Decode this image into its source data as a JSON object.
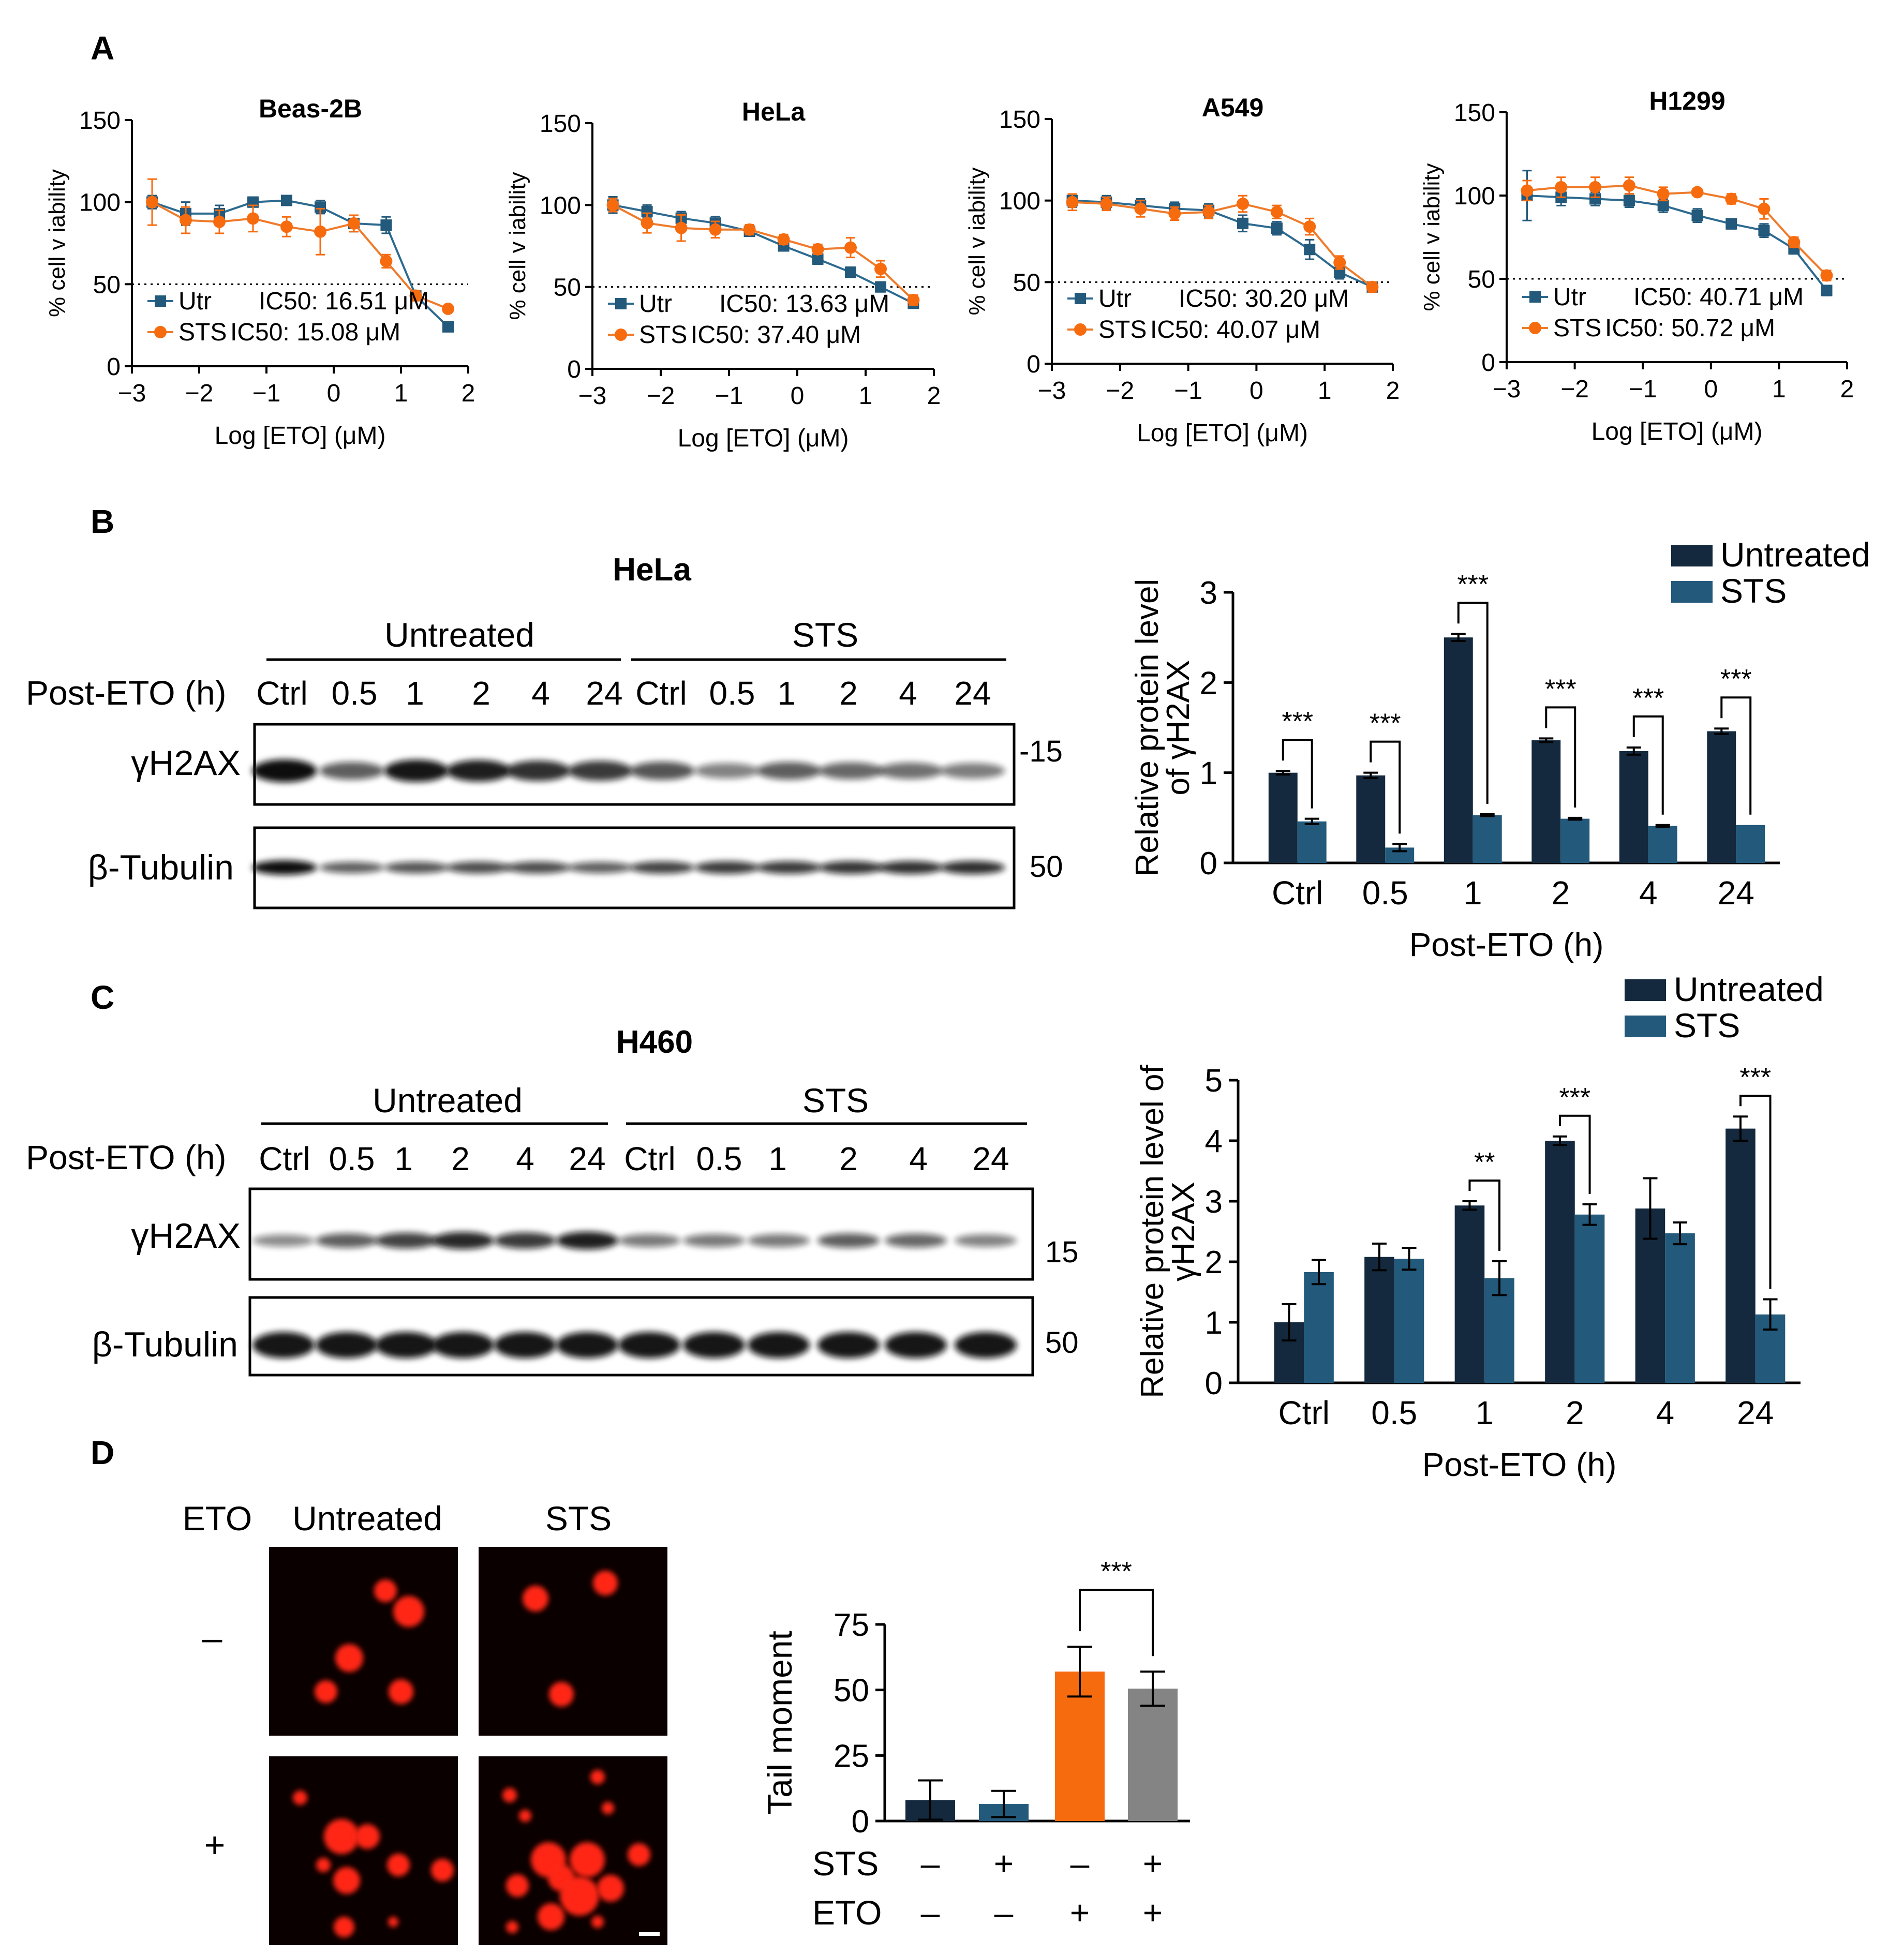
{
  "colors": {
    "navy": "#14293d",
    "teal": "#23597b",
    "orange": "#f76b0f",
    "gray": "#848484",
    "curveTeal": "#2d6a8f",
    "curveOrange": "#ee7b2b"
  },
  "panels": {
    "A": "A",
    "B": "B",
    "C": "C",
    "D": "D"
  },
  "panelA": {
    "ylabel": "% cell v iability",
    "xlabel": "Log [ETO] (μM)",
    "xticks": [
      "−3",
      "−2",
      "−1",
      "0",
      "1",
      "2"
    ],
    "yticks": [
      "0",
      "50",
      "100",
      "150"
    ],
    "legend_utr": "Utr",
    "legend_sts": "STS",
    "plots": [
      {
        "title": "Beas-2B",
        "utr_ic50": "IC50: 16.51 μM",
        "sts_ic50": "IC50: 15.08 μM"
      },
      {
        "title": "HeLa",
        "utr_ic50": "IC50: 13.63 μM",
        "sts_ic50": "IC50: 37.40 μM"
      },
      {
        "title": "A549",
        "utr_ic50": "IC50: 30.20 μM",
        "sts_ic50": "IC50: 40.07 μM"
      },
      {
        "title": "H1299",
        "utr_ic50": "IC50: 40.71 μM",
        "sts_ic50": "IC50: 50.72 μM"
      }
    ]
  },
  "panelB": {
    "blot_title": "HeLa",
    "group1": "Untreated",
    "group2": "STS",
    "row_label": "Post-ETO (h)",
    "lanes": [
      "Ctrl",
      "0.5",
      "1",
      "2",
      "4",
      "24",
      "Ctrl",
      "0.5",
      "1",
      "2",
      "4",
      "24"
    ],
    "band1_label": "γH2AX",
    "band2_label": "β-Tubulin",
    "mw1": "-15",
    "mw2": "50",
    "ylabel_line1": "Relative protein level",
    "ylabel_line2": "of γH2AX",
    "xlabel": "Post-ETO (h)",
    "legend_untreated": "Untreated",
    "legend_sts": "STS"
  },
  "panelC": {
    "blot_title": "H460",
    "group1": "Untreated",
    "group2": "STS",
    "row_label": "Post-ETO (h)",
    "lanes": [
      "Ctrl",
      "0.5",
      "1",
      "2",
      "4",
      "24",
      "Ctrl",
      "0.5",
      "1",
      "2",
      "4",
      "24"
    ],
    "band1_label": "γH2AX",
    "band2_label": "β-Tubulin",
    "mw1": "15",
    "mw2": "50",
    "ylabel_line1": "Relative protein level of",
    "ylabel_line2": "γH2AX",
    "xlabel": "Post-ETO (h)",
    "legend_untreated": "Untreated",
    "legend_sts": "STS"
  },
  "panelD": {
    "eto_label": "ETO",
    "col1": "Untreated",
    "col2": "STS",
    "row_minus": "–",
    "row_plus": "+",
    "ylabel": "Tail moment",
    "sts_row_label": "STS",
    "eto_row_label": "ETO",
    "sts_signs": [
      "–",
      "+",
      "–",
      "+"
    ],
    "eto_signs": [
      "–",
      "–",
      "+",
      "+"
    ]
  },
  "chart_data": [
    {
      "type": "line",
      "title": "Beas-2B",
      "xlabel": "Log [ETO] (μM)",
      "ylabel": "% cell v iability",
      "xlim": [
        -3,
        2
      ],
      "ylim": [
        0,
        150
      ],
      "reference_line": 50,
      "series": [
        {
          "name": "Utr",
          "x": [
            -2.7,
            -2.2,
            -1.7,
            -1.2,
            -0.7,
            -0.2,
            0.3,
            0.78,
            1.22,
            1.7
          ],
          "y": [
            100,
            93,
            93,
            100,
            101,
            97,
            87,
            86,
            43,
            24
          ],
          "err": [
            4,
            7,
            5,
            3,
            3,
            4,
            5,
            5,
            3,
            2
          ]
        },
        {
          "name": "STS",
          "x": [
            -2.7,
            -2.2,
            -1.7,
            -1.2,
            -0.7,
            -0.2,
            0.3,
            0.78,
            1.22,
            1.7
          ],
          "y": [
            100,
            89,
            88,
            90,
            85,
            82,
            87,
            64,
            43,
            35
          ],
          "err": [
            14,
            8,
            7,
            8,
            6,
            14,
            5,
            4,
            3,
            2
          ]
        }
      ]
    },
    {
      "type": "line",
      "title": "HeLa",
      "xlabel": "Log [ETO] (μM)",
      "ylabel": "% cell v iability",
      "xlim": [
        -3,
        2
      ],
      "ylim": [
        0,
        150
      ],
      "reference_line": 50,
      "series": [
        {
          "name": "Utr",
          "x": [
            -2.7,
            -2.2,
            -1.7,
            -1.2,
            -0.7,
            -0.2,
            0.3,
            0.78,
            1.22,
            1.7
          ],
          "y": [
            100,
            96,
            92,
            89,
            84,
            75,
            67,
            59,
            50,
            40
          ],
          "err": [
            5,
            4,
            4,
            4,
            3,
            3,
            3,
            3,
            3,
            2
          ]
        },
        {
          "name": "STS",
          "x": [
            -2.7,
            -2.2,
            -1.7,
            -1.2,
            -0.7,
            -0.2,
            0.3,
            0.78,
            1.22,
            1.7
          ],
          "y": [
            100,
            89,
            86,
            85,
            85,
            79,
            73,
            74,
            61,
            42
          ],
          "err": [
            4,
            6,
            8,
            5,
            3,
            3,
            3,
            6,
            5,
            3
          ]
        }
      ]
    },
    {
      "type": "line",
      "title": "A549",
      "xlabel": "Log [ETO] (μM)",
      "ylabel": "% cell v iability",
      "xlim": [
        -3,
        2
      ],
      "ylim": [
        0,
        150
      ],
      "reference_line": 50,
      "series": [
        {
          "name": "Utr",
          "x": [
            -2.7,
            -2.2,
            -1.7,
            -1.2,
            -0.7,
            -0.2,
            0.3,
            0.78,
            1.22,
            1.7
          ],
          "y": [
            100,
            99,
            97,
            95,
            94,
            86,
            83,
            70,
            56,
            47
          ],
          "err": [
            4,
            4,
            4,
            4,
            4,
            5,
            4,
            6,
            4,
            3
          ]
        },
        {
          "name": "STS",
          "x": [
            -2.7,
            -2.2,
            -1.7,
            -1.2,
            -0.7,
            -0.2,
            0.3,
            0.78,
            1.22,
            1.7
          ],
          "y": [
            99,
            98,
            95,
            92,
            93,
            98,
            93,
            84,
            62,
            47
          ],
          "err": [
            5,
            4,
            5,
            4,
            4,
            5,
            4,
            5,
            4,
            3
          ]
        }
      ]
    },
    {
      "type": "line",
      "title": "H1299",
      "xlabel": "Log [ETO] (μM)",
      "ylabel": "% cell v iability",
      "xlim": [
        -3,
        2
      ],
      "ylim": [
        0,
        150
      ],
      "reference_line": 50,
      "series": [
        {
          "name": "Utr",
          "x": [
            -2.7,
            -2.2,
            -1.7,
            -1.2,
            -0.7,
            -0.2,
            0.3,
            0.78,
            1.22,
            1.7
          ],
          "y": [
            100,
            99,
            98,
            97,
            94,
            88,
            83,
            79,
            68,
            43
          ],
          "err": [
            15,
            5,
            4,
            4,
            4,
            4,
            3,
            4,
            3,
            3
          ]
        },
        {
          "name": "STS",
          "x": [
            -2.7,
            -2.2,
            -1.7,
            -1.2,
            -0.7,
            -0.2,
            0.3,
            0.78,
            1.22,
            1.7
          ],
          "y": [
            103,
            105,
            105,
            106,
            101,
            102,
            98,
            92,
            72,
            52
          ],
          "err": [
            6,
            6,
            6,
            5,
            4,
            2,
            3,
            6,
            3,
            3
          ]
        }
      ]
    },
    {
      "type": "bar",
      "title": "HeLa γH2AX",
      "categories": [
        "Ctrl",
        "0.5",
        "1",
        "2",
        "4",
        "24"
      ],
      "xlabel": "Post-ETO (h)",
      "ylabel": "Relative protein level of γH2AX",
      "ylim": [
        0,
        3
      ],
      "yticks": [
        "0",
        "1",
        "2",
        "3"
      ],
      "series": [
        {
          "name": "Untreated",
          "values": [
            1.0,
            0.97,
            2.5,
            1.36,
            1.24,
            1.46
          ],
          "err": [
            0.02,
            0.03,
            0.04,
            0.02,
            0.04,
            0.03
          ]
        },
        {
          "name": "STS",
          "values": [
            0.46,
            0.17,
            0.53,
            0.49,
            0.41,
            0.42
          ],
          "err": [
            0.03,
            0.04,
            0.01,
            0.01,
            0.01,
            0.0
          ]
        }
      ],
      "significance": [
        "***",
        "***",
        "***",
        "***",
        "***",
        "***"
      ]
    },
    {
      "type": "bar",
      "title": "H460 γH2AX",
      "categories": [
        "Ctrl",
        "0.5",
        "1",
        "2",
        "4",
        "24"
      ],
      "xlabel": "Post-ETO (h)",
      "ylabel": "Relative protein level of γH2AX",
      "ylim": [
        0,
        5
      ],
      "yticks": [
        "0",
        "1",
        "2",
        "3",
        "4",
        "5"
      ],
      "series": [
        {
          "name": "Untreated",
          "values": [
            1.0,
            2.08,
            2.93,
            4.0,
            2.88,
            4.2
          ],
          "err": [
            0.3,
            0.22,
            0.07,
            0.07,
            0.5,
            0.2
          ]
        },
        {
          "name": "STS",
          "values": [
            1.83,
            2.05,
            1.73,
            2.78,
            2.47,
            1.13
          ],
          "err": [
            0.2,
            0.18,
            0.28,
            0.17,
            0.18,
            0.25
          ]
        }
      ],
      "significance": [
        "",
        "",
        "**",
        "***",
        "",
        "***"
      ]
    },
    {
      "type": "bar",
      "title": "Tail moment",
      "ylabel": "Tail moment",
      "ylim": [
        0,
        75
      ],
      "yticks": [
        "0",
        "25",
        "50",
        "75"
      ],
      "categories": [
        "STS– ETO–",
        "STS+ ETO–",
        "STS– ETO+",
        "STS+ ETO+"
      ],
      "values": [
        8,
        6.5,
        57,
        50.5
      ],
      "err": [
        7.5,
        5,
        9.5,
        6.5
      ],
      "significance": "***"
    }
  ]
}
